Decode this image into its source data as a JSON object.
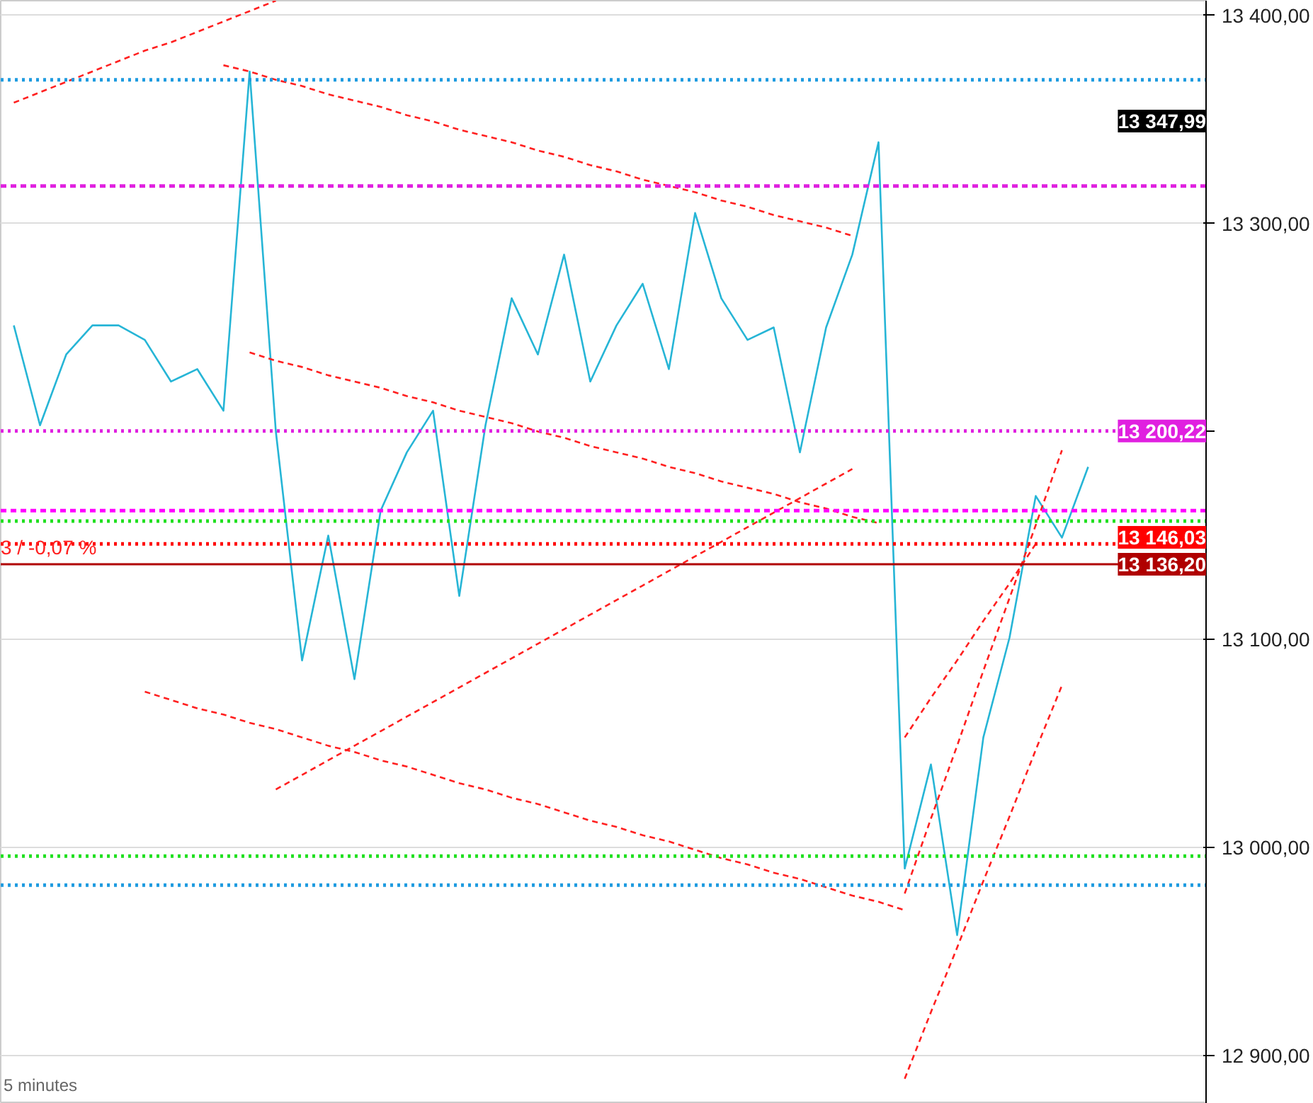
{
  "chart_data": {
    "type": "line",
    "tick_labels": "y",
    "grid": "y",
    "marker": "none",
    "categories": [
      null,
      null,
      null,
      null,
      null,
      null,
      null,
      null,
      null,
      null,
      null,
      null,
      null,
      null,
      null,
      null,
      null,
      null,
      null,
      null,
      null,
      null,
      null,
      null,
      null,
      null,
      null,
      null,
      null,
      null,
      null,
      null,
      null,
      null,
      null,
      null,
      null,
      null,
      null,
      null,
      null,
      null
    ],
    "ylim": [
      12877,
      13407
    ],
    "yticks": [
      {
        "value": 12900,
        "label": "12 900,00"
      },
      {
        "value": 13000,
        "label": "13 000,00"
      },
      {
        "value": 13100,
        "label": "13 100,00"
      },
      {
        "value": 13200,
        "label": null
      },
      {
        "value": 13300,
        "label": "13 300,00"
      },
      {
        "value": 13400,
        "label": "13 400,00"
      }
    ],
    "series": [
      {
        "color": "#26b5d6",
        "values": [
          13251,
          13203,
          13237,
          13251,
          13251,
          13244,
          13224,
          13230,
          13210,
          13373,
          13200,
          13090,
          13150,
          13081,
          13162,
          13190,
          13210,
          13121,
          13203,
          13264,
          13237,
          13285,
          13224,
          13251,
          13271,
          13230,
          13305,
          13264,
          13244,
          13250,
          13190,
          13250,
          13285,
          13339,
          12990,
          13040,
          12958,
          13053,
          13101,
          13169,
          13149,
          13183
        ]
      },
      {
        "color": "#ff2020",
        "line_style": "dashed",
        "values": [
          13358,
          13363,
          13368,
          13373,
          13378,
          13383,
          13387,
          13392,
          13397,
          13402,
          13407,
          null,
          null,
          null,
          null,
          null,
          null,
          null,
          null,
          null,
          null,
          null,
          null,
          null,
          null,
          null,
          null,
          null,
          null,
          null,
          null,
          null,
          null,
          null,
          null,
          null,
          null,
          null,
          null,
          null,
          null,
          null
        ]
      },
      {
        "color": "#ff2020",
        "line_style": "dashed",
        "values": [
          null,
          null,
          null,
          null,
          null,
          null,
          null,
          null,
          13376,
          13373,
          13369,
          13366,
          13362,
          13359,
          13356,
          13352,
          13349,
          13345,
          13342,
          13339,
          13335,
          13332,
          13328,
          13325,
          13321,
          13318,
          13315,
          13311,
          13308,
          13304,
          13301,
          13298,
          13294,
          null,
          null,
          null,
          null,
          null,
          null,
          null,
          null,
          null
        ]
      },
      {
        "color": "#ff2020",
        "line_style": "dashed",
        "values": [
          null,
          null,
          null,
          null,
          null,
          null,
          null,
          null,
          null,
          13238,
          13234,
          13231,
          13227,
          13224,
          13221,
          13217,
          13214,
          13210,
          13207,
          13204,
          13200,
          13197,
          13193,
          13190,
          13187,
          13183,
          13180,
          13176,
          13173,
          13170,
          13166,
          13163,
          13159,
          13156,
          null,
          null,
          null,
          null,
          null,
          null,
          null,
          null
        ]
      },
      {
        "color": "#ff2020",
        "line_style": "dashed",
        "values": [
          null,
          null,
          null,
          null,
          null,
          13075,
          13071,
          13067,
          13064,
          13060,
          13057,
          13053,
          13049,
          13046,
          13042,
          13039,
          13035,
          13031,
          13028,
          13024,
          13021,
          13017,
          13013,
          13010,
          13006,
          13003,
          12999,
          12995,
          12992,
          12988,
          12985,
          12981,
          12977,
          12974,
          12970,
          null,
          null,
          null,
          null,
          null,
          null,
          null
        ]
      },
      {
        "color": "#ff2020",
        "line_style": "dashed",
        "values": [
          null,
          null,
          null,
          null,
          null,
          null,
          null,
          null,
          null,
          null,
          13028,
          13035,
          13042,
          13049,
          13056,
          13063,
          13070,
          13077,
          13084,
          13091,
          13098,
          13105,
          13112,
          13119,
          13126,
          13133,
          13140,
          13147,
          13154,
          13161,
          13168,
          13175,
          13182,
          null,
          null,
          null,
          null,
          null,
          null,
          null,
          null,
          null
        ]
      },
      {
        "color": "#ff2020",
        "line_style": "dashed",
        "values": [
          null,
          null,
          null,
          null,
          null,
          null,
          null,
          null,
          null,
          null,
          null,
          null,
          null,
          null,
          null,
          null,
          null,
          null,
          null,
          null,
          null,
          null,
          null,
          null,
          null,
          null,
          null,
          null,
          null,
          null,
          null,
          null,
          null,
          null,
          12978,
          13014,
          13049,
          13085,
          13120,
          13155,
          13191,
          null
        ]
      },
      {
        "color": "#ff2020",
        "line_style": "dashed",
        "values": [
          null,
          null,
          null,
          null,
          null,
          null,
          null,
          null,
          null,
          null,
          null,
          null,
          null,
          null,
          null,
          null,
          null,
          null,
          null,
          null,
          null,
          null,
          null,
          null,
          null,
          null,
          null,
          null,
          null,
          null,
          null,
          null,
          null,
          null,
          13053,
          13072,
          13090,
          13109,
          13127,
          13146,
          null,
          null
        ]
      },
      {
        "color": "#ff2020",
        "line_style": "dashed",
        "values": [
          null,
          null,
          null,
          null,
          null,
          null,
          null,
          null,
          null,
          null,
          null,
          null,
          null,
          null,
          null,
          null,
          null,
          null,
          null,
          null,
          null,
          null,
          null,
          null,
          null,
          null,
          null,
          null,
          null,
          null,
          null,
          null,
          null,
          null,
          12889,
          12921,
          12952,
          12984,
          13015,
          13047,
          13078,
          null
        ]
      }
    ],
    "ref_lines": [
      {
        "axis": "y",
        "value": 13369,
        "color": "#1e9be0",
        "line_style": "dotted"
      },
      {
        "axis": "y",
        "value": 13318,
        "color": "#e020e0",
        "line_style": "dashed"
      },
      {
        "axis": "y",
        "value": 13200.22,
        "label": "13 200,22",
        "color": "#e020e0",
        "line_style": "dotted"
      },
      {
        "axis": "y",
        "value": 13162,
        "color": "#ff00ff",
        "line_style": "dashed"
      },
      {
        "axis": "y",
        "value": 13157,
        "color": "#20e020",
        "line_style": "dotted"
      },
      {
        "axis": "y",
        "value": 13146.03,
        "label": "13 146,03",
        "color": "#ff0000",
        "line_style": "dotted"
      },
      {
        "axis": "y",
        "value": 13136.2,
        "label": "13 136,20",
        "color": "#b00000",
        "line_style": "solid"
      },
      {
        "axis": "y",
        "value": 12996,
        "color": "#20e020",
        "line_style": "dotted"
      },
      {
        "axis": "y",
        "value": 12982,
        "color": "#1e9be0",
        "line_style": "dotted"
      }
    ],
    "annotations": [
      "13 347,99",
      "3 / -0,07 %",
      "5 minutes"
    ]
  }
}
